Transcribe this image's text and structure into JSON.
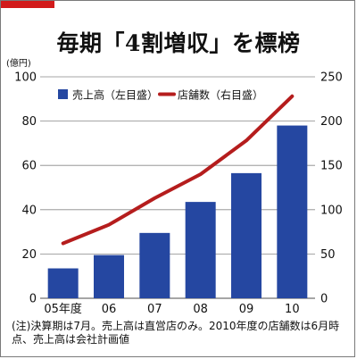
{
  "colors": {
    "accent": "#d21b1b",
    "bar": "#2547a1",
    "line": "#b51d1d",
    "grid": "#888888",
    "text": "#111111"
  },
  "title": "毎期「4割増収」を標榜",
  "note": "(注)決算期は7月。売上高は直営店のみ。2010年度の店舗数は6月時点、売上高は会社計画値",
  "chart_data": {
    "type": "bar",
    "categories": [
      "05年度",
      "06",
      "07",
      "08",
      "09",
      "10"
    ],
    "series": [
      {
        "name": "売上高（左目盛）",
        "type": "bar",
        "axis": "left",
        "values": [
          13.5,
          19.5,
          29.5,
          43.5,
          56.5,
          78
        ]
      },
      {
        "name": "店舗数（右目盛）",
        "type": "line",
        "axis": "right",
        "values": [
          62,
          83,
          113,
          140,
          178,
          228
        ]
      }
    ],
    "y_left": {
      "unit": "(億円)",
      "min": 0,
      "max": 100,
      "ticks": [
        0,
        20,
        40,
        60,
        80,
        100
      ]
    },
    "y_right": {
      "min": 0,
      "max": 250,
      "ticks": [
        0,
        50,
        100,
        150,
        200,
        250
      ]
    },
    "grid": true,
    "legend": "top-left"
  }
}
